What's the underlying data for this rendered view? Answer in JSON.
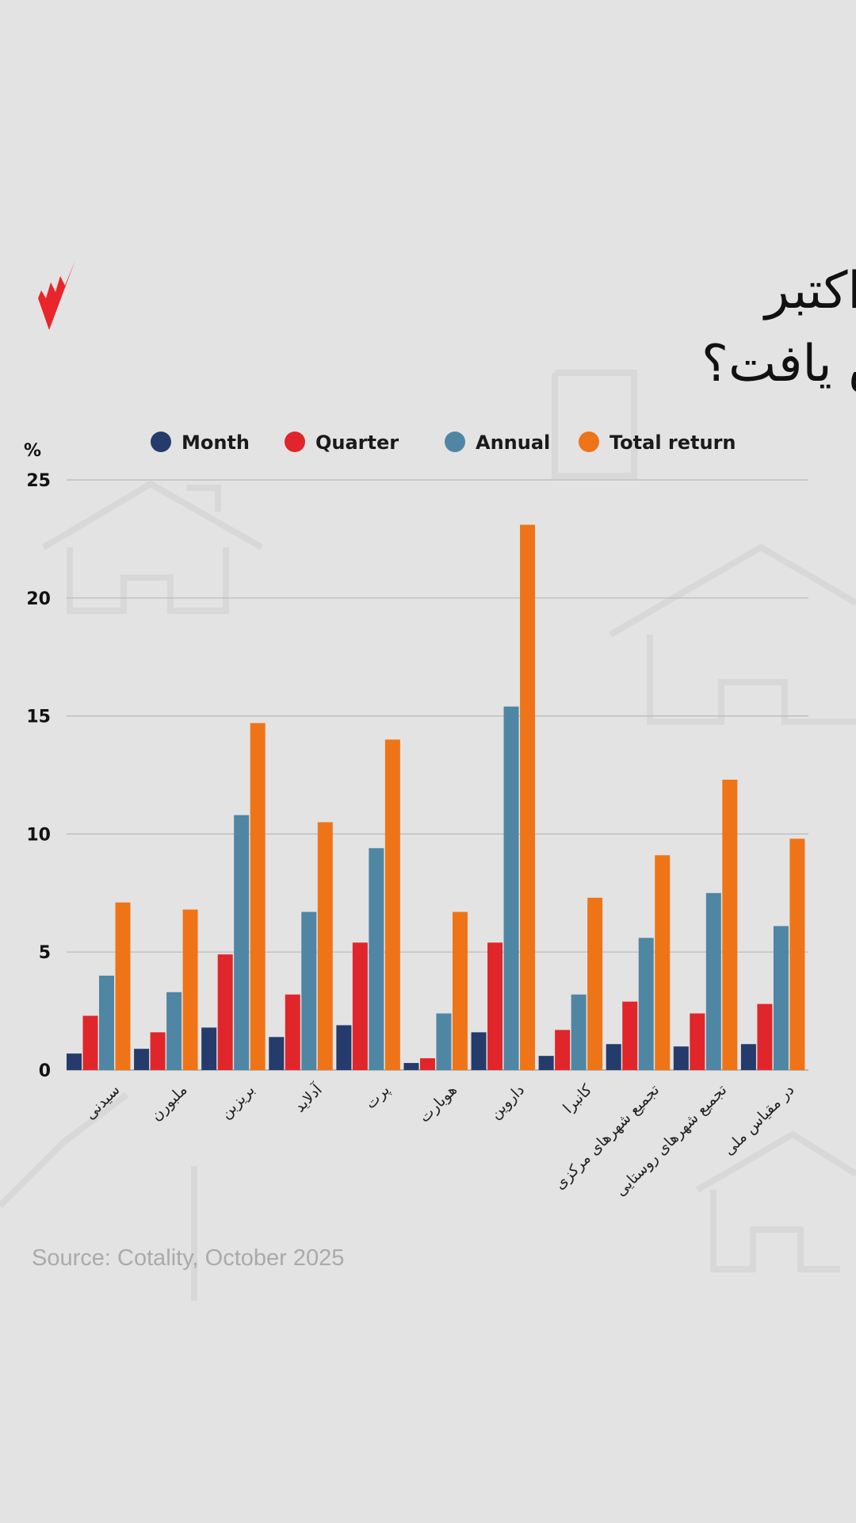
{
  "title_lines": [
    "قیمت مسکن در ماه اکتبر",
    "چقدر افزایش یافت؟"
  ],
  "logo": {
    "icon": "sbs-logo",
    "color": "#e8262a"
  },
  "source": "Source: Cotality, October 2025",
  "chart_data": {
    "type": "bar",
    "ylabel": "%",
    "ylim": [
      0,
      25
    ],
    "yticks": [
      "0",
      "5",
      "10",
      "15",
      "20",
      "25"
    ],
    "grid": true,
    "legend_position": "top",
    "categories": [
      "سیدنی",
      "ملبورن",
      "بریزبن",
      "آدلاید",
      "پرت",
      "هوبارت",
      "داروین",
      "کانبرا",
      "تجمیع شهرهای مرکزی",
      "تجمیع شهرهای روستایی",
      "در مقیاس ملی"
    ],
    "series": [
      {
        "name": "Month",
        "color": "#243b6b",
        "values": [
          0.7,
          0.9,
          1.8,
          1.4,
          1.9,
          0.3,
          1.6,
          0.6,
          1.1,
          1.0,
          1.1
        ]
      },
      {
        "name": "Quarter",
        "color": "#e0262a",
        "values": [
          2.3,
          1.6,
          4.9,
          3.2,
          5.4,
          0.5,
          5.4,
          1.7,
          2.9,
          2.4,
          2.8
        ]
      },
      {
        "name": "Annual",
        "color": "#4f86a3",
        "values": [
          4.0,
          3.3,
          10.8,
          6.7,
          9.4,
          2.4,
          15.4,
          3.2,
          5.6,
          7.5,
          6.1
        ]
      },
      {
        "name": "Total return",
        "color": "#ef7417",
        "values": [
          7.1,
          6.8,
          14.7,
          10.5,
          14.0,
          6.7,
          23.1,
          7.3,
          9.1,
          12.3,
          9.8
        ]
      }
    ]
  }
}
